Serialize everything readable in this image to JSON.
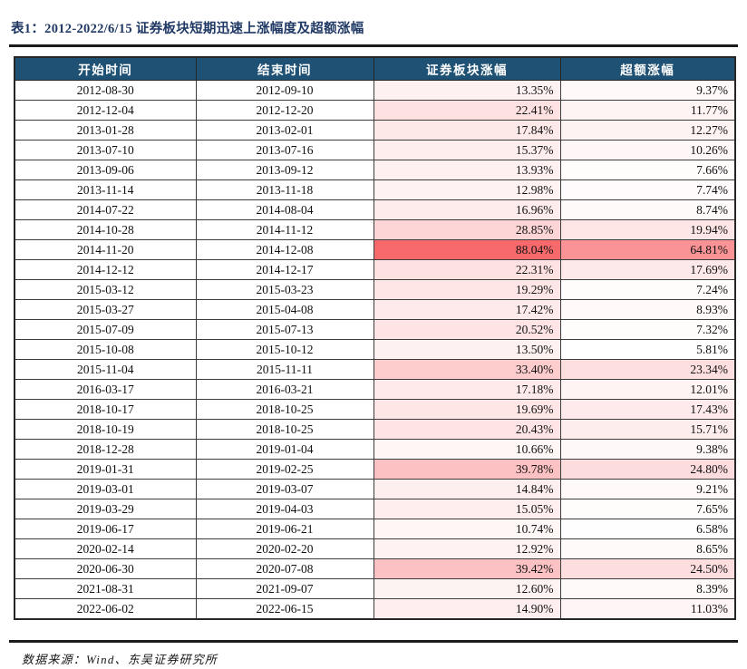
{
  "title": "表1：2012-2022/6/15 证券板块短期迅速上涨幅度及超额涨幅",
  "table": {
    "columns": [
      {
        "key": "start_date",
        "label": "开始时间"
      },
      {
        "key": "end_date",
        "label": "结束时间"
      },
      {
        "key": "sector_gain",
        "label": "证券板块涨幅"
      },
      {
        "key": "excess_gain",
        "label": "超额涨幅"
      }
    ],
    "rows": [
      [
        "2012-08-30",
        "2012-09-10",
        "13.35%",
        "9.37%"
      ],
      [
        "2012-12-04",
        "2012-12-20",
        "22.41%",
        "11.77%"
      ],
      [
        "2013-01-28",
        "2013-02-01",
        "17.84%",
        "12.27%"
      ],
      [
        "2013-07-10",
        "2013-07-16",
        "15.37%",
        "10.26%"
      ],
      [
        "2013-09-06",
        "2013-09-12",
        "13.93%",
        "7.66%"
      ],
      [
        "2013-11-14",
        "2013-11-18",
        "12.98%",
        "7.74%"
      ],
      [
        "2014-07-22",
        "2014-08-04",
        "16.96%",
        "8.74%"
      ],
      [
        "2014-10-28",
        "2014-11-12",
        "28.85%",
        "19.94%"
      ],
      [
        "2014-11-20",
        "2014-12-08",
        "88.04%",
        "64.81%"
      ],
      [
        "2014-12-12",
        "2014-12-17",
        "22.31%",
        "17.69%"
      ],
      [
        "2015-03-12",
        "2015-03-23",
        "19.29%",
        "7.24%"
      ],
      [
        "2015-03-27",
        "2015-04-08",
        "17.42%",
        "8.93%"
      ],
      [
        "2015-07-09",
        "2015-07-13",
        "20.52%",
        "7.32%"
      ],
      [
        "2015-10-08",
        "2015-10-12",
        "13.50%",
        "5.81%"
      ],
      [
        "2015-11-04",
        "2015-11-11",
        "33.40%",
        "23.34%"
      ],
      [
        "2016-03-17",
        "2016-03-21",
        "17.18%",
        "12.01%"
      ],
      [
        "2018-10-17",
        "2018-10-25",
        "19.69%",
        "17.43%"
      ],
      [
        "2018-10-19",
        "2018-10-25",
        "20.43%",
        "15.71%"
      ],
      [
        "2018-12-28",
        "2019-01-04",
        "10.66%",
        "9.38%"
      ],
      [
        "2019-01-31",
        "2019-02-25",
        "39.78%",
        "24.80%"
      ],
      [
        "2019-03-01",
        "2019-03-07",
        "14.84%",
        "9.21%"
      ],
      [
        "2019-03-29",
        "2019-04-03",
        "15.05%",
        "7.65%"
      ],
      [
        "2019-06-17",
        "2019-06-21",
        "10.74%",
        "6.58%"
      ],
      [
        "2020-02-14",
        "2020-02-20",
        "12.92%",
        "8.65%"
      ],
      [
        "2020-06-30",
        "2020-07-08",
        "39.42%",
        "24.50%"
      ],
      [
        "2021-08-31",
        "2021-09-07",
        "12.60%",
        "8.39%"
      ],
      [
        "2022-06-02",
        "2022-06-15",
        "14.90%",
        "11.03%"
      ]
    ],
    "heat": {
      "applies_to": [
        "sector_gain",
        "excess_gain"
      ],
      "min_value": 5.81,
      "max_value": 88.04,
      "min_color": "#FFFFFF",
      "max_color": "#F8696B"
    }
  },
  "footer": {
    "source_text": "数据来源：Wind、东吴证券研究所"
  },
  "colors": {
    "title_color": "#1F3864",
    "header_bg": "#1F5174",
    "header_text": "#FFFFFF",
    "rule_color": "#1B1B1B",
    "outer_border_color": "#262626",
    "cell_border_color": "#3C3C3C"
  }
}
